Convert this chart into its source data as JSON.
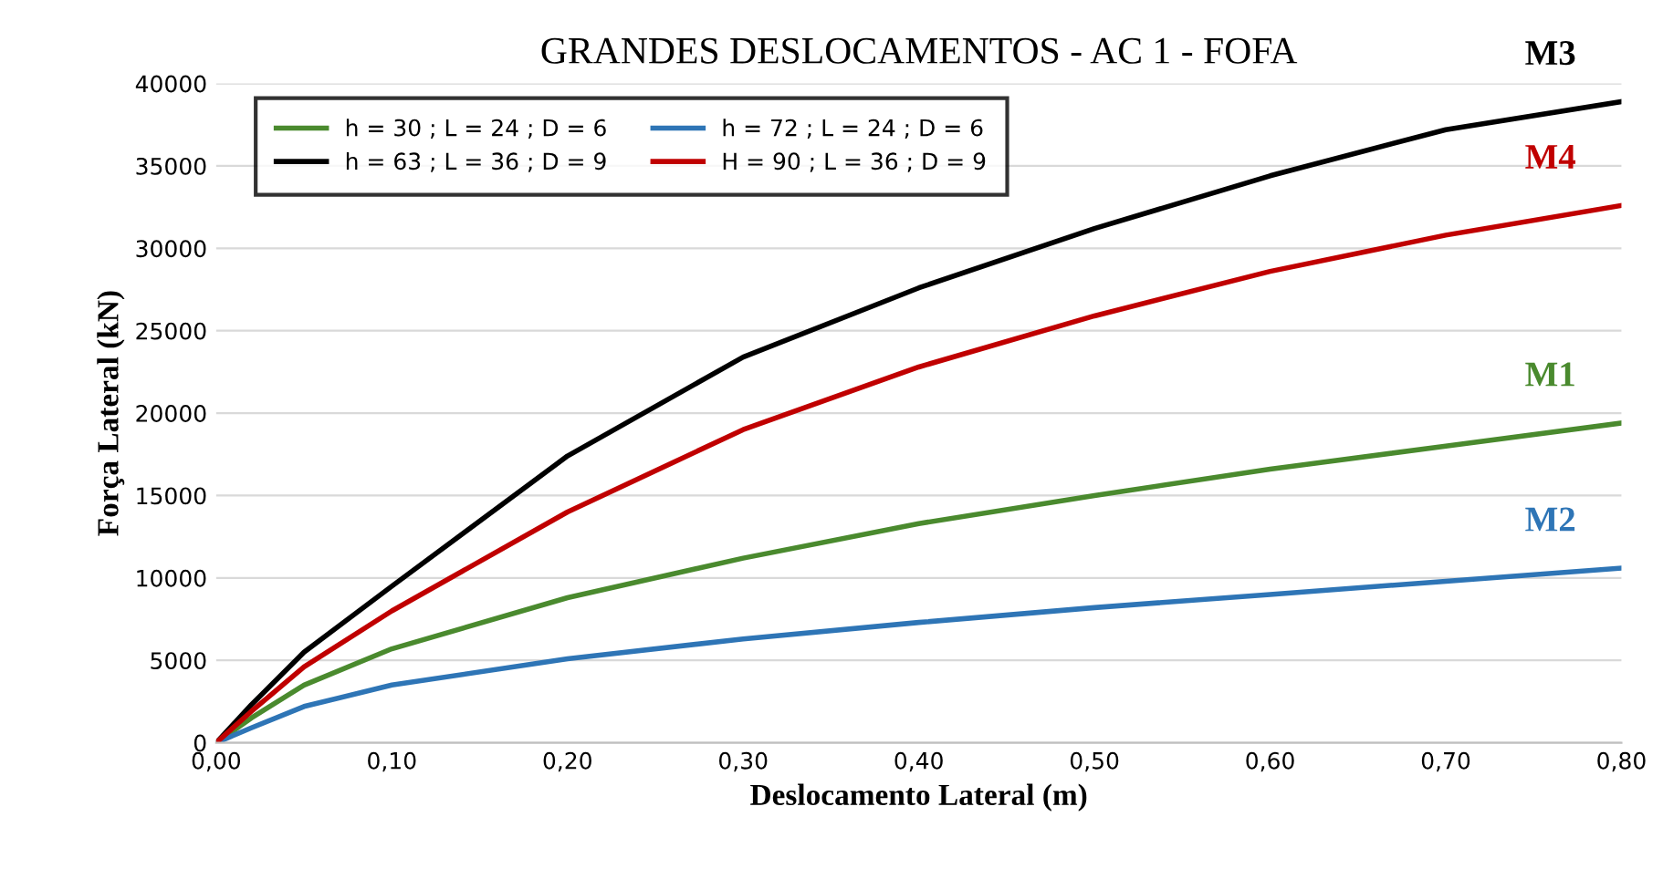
{
  "chart_data": {
    "type": "line",
    "title": "GRANDES DESLOCAMENTOS - AC 1 - FOFA",
    "xlabel": "Deslocamento Lateral (m)",
    "ylabel": "Força Lateral (kN)",
    "x": [
      0,
      0.02,
      0.05,
      0.1,
      0.2,
      0.3,
      0.4,
      0.5,
      0.6,
      0.7,
      0.8
    ],
    "series": [
      {
        "name": "h = 30 ; L = 24 ; D = 6",
        "color": "#4a8a2e",
        "values": [
          0,
          1500,
          3500,
          5700,
          8800,
          11200,
          13300,
          15000,
          16600,
          18000,
          19400
        ]
      },
      {
        "name": "h = 72 ; L = 24 ; D = 6",
        "color": "#2e75b6",
        "values": [
          0,
          900,
          2200,
          3500,
          5100,
          6300,
          7300,
          8200,
          9000,
          9800,
          10600
        ]
      },
      {
        "name": "h = 63 ; L = 36 ; D = 9",
        "color": "#000000",
        "values": [
          0,
          2300,
          5500,
          9500,
          17400,
          23400,
          27600,
          31200,
          34400,
          37200,
          38900
        ]
      },
      {
        "name": "H = 90 ; L = 36 ; D = 9",
        "color": "#c00000",
        "values": [
          0,
          1900,
          4600,
          8000,
          14000,
          19000,
          22800,
          25900,
          28600,
          30800,
          32600
        ]
      }
    ],
    "annotations": [
      "M1",
      "M2",
      "M3",
      "M4"
    ],
    "xlim": [
      0,
      0.8
    ],
    "ylim": [
      0,
      40000
    ],
    "xticks": [
      {
        "value": 0,
        "label": "0,00"
      },
      {
        "value": 0.1,
        "label": "0,10"
      },
      {
        "value": 0.2,
        "label": "0,20"
      },
      {
        "value": 0.3,
        "label": "0,30"
      },
      {
        "value": 0.4,
        "label": "0,40"
      },
      {
        "value": 0.5,
        "label": "0,50"
      },
      {
        "value": 0.6,
        "label": "0,60"
      },
      {
        "value": 0.7,
        "label": "0,70"
      },
      {
        "value": 0.8,
        "label": "0,80"
      }
    ],
    "yticks": [
      0,
      5000,
      10000,
      15000,
      20000,
      25000,
      30000,
      35000,
      40000
    ],
    "grid": "y",
    "legend": "top left",
    "line_style": "solid",
    "marker": "none"
  }
}
